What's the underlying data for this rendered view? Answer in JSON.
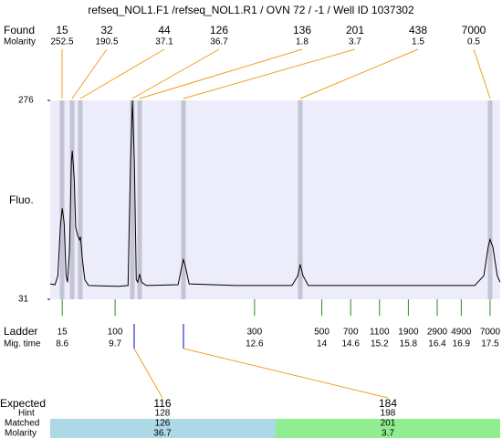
{
  "title": "refseq_NOL1.F1 /refseq_NOL1.R1 / OVN 72 / -1 / Well ID 1037302",
  "found": {
    "label": "Found",
    "sub_label": "Molarity",
    "sizes": [
      15,
      32,
      44,
      126,
      136,
      201,
      438,
      7000
    ],
    "molarity": [
      252.5,
      190.5,
      37.1,
      36.7,
      1.8,
      3.7,
      1.5,
      0.5
    ]
  },
  "chart_data": {
    "type": "line",
    "y_label": "Fluo.",
    "color": "#000000",
    "x": [
      8.35,
      8.45,
      8.51,
      8.56,
      8.6,
      8.64,
      8.68,
      8.71,
      8.75,
      8.79,
      8.81,
      8.85,
      8.88,
      8.92,
      8.96,
      8.98,
      9.02,
      9.07,
      9.15,
      9.78,
      9.97,
      10.02,
      10.06,
      10.1,
      10.14,
      10.17,
      10.21,
      10.25,
      10.35,
      11.01,
      11.09,
      11.12,
      11.16,
      11.24,
      12.24,
      13.38,
      13.5,
      13.55,
      13.61,
      13.72,
      17.18,
      17.37,
      17.46,
      17.5,
      17.56,
      17.65,
      17.71
    ],
    "values": [
      50,
      49,
      60,
      120,
      143,
      125,
      60,
      52,
      90,
      200,
      214,
      180,
      120,
      110,
      104,
      108,
      80,
      55,
      48,
      47,
      48,
      200,
      276,
      200,
      55,
      52,
      62,
      52,
      48,
      49,
      72,
      80,
      72,
      50,
      48,
      48,
      60,
      74,
      60,
      48,
      48,
      60,
      95,
      105,
      95,
      60,
      52
    ],
    "xlim": [
      8.35,
      17.71
    ],
    "ylim": [
      31,
      276
    ],
    "yticks": [
      276,
      31
    ]
  },
  "ladder": {
    "label": "Ladder",
    "sub_label": "Mig. time",
    "sizes": [
      15,
      100,
      300,
      500,
      700,
      1100,
      1900,
      2900,
      4900,
      7000
    ],
    "mig_times": [
      8.6,
      9.7,
      12.6,
      14,
      14.6,
      15.2,
      15.8,
      16.4,
      16.9,
      17.5
    ]
  },
  "expected": {
    "labels": [
      "Expected",
      "Hint",
      "Matched",
      "Molarity"
    ],
    "columns": [
      {
        "expected": 116,
        "hint": 128,
        "matched": 126,
        "molarity": 36.7
      },
      {
        "expected": 184,
        "hint": 198,
        "matched": 201,
        "molarity": 3.7
      }
    ]
  }
}
